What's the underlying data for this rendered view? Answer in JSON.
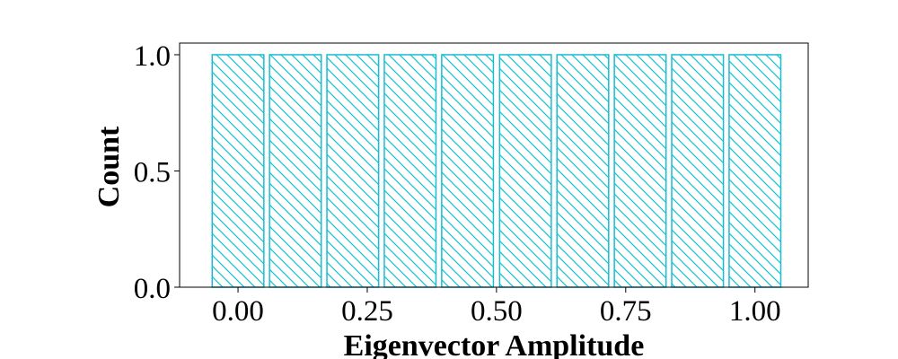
{
  "chart_data": {
    "type": "bar",
    "xlabel": "Eigenvector Amplitude",
    "ylabel": "Count",
    "x_ticks": [
      "0.00",
      "0.25",
      "0.50",
      "0.75",
      "1.00"
    ],
    "y_ticks": [
      "0.0",
      "0.5",
      "1.0"
    ],
    "xlim": [
      -0.113,
      1.103
    ],
    "ylim": [
      0,
      1.05
    ],
    "bar_width": 0.1,
    "bars": [
      {
        "x": 0.0,
        "value": 1.0
      },
      {
        "x": 0.111,
        "value": 1.0
      },
      {
        "x": 0.222,
        "value": 1.0
      },
      {
        "x": 0.333,
        "value": 1.0
      },
      {
        "x": 0.444,
        "value": 1.0
      },
      {
        "x": 0.556,
        "value": 1.0
      },
      {
        "x": 0.667,
        "value": 1.0
      },
      {
        "x": 0.778,
        "value": 1.0
      },
      {
        "x": 0.889,
        "value": 1.0
      },
      {
        "x": 1.0,
        "value": 1.0
      }
    ],
    "bar_color": "#17becf",
    "hatch": "diagonal",
    "grid": false,
    "legend": "none"
  }
}
